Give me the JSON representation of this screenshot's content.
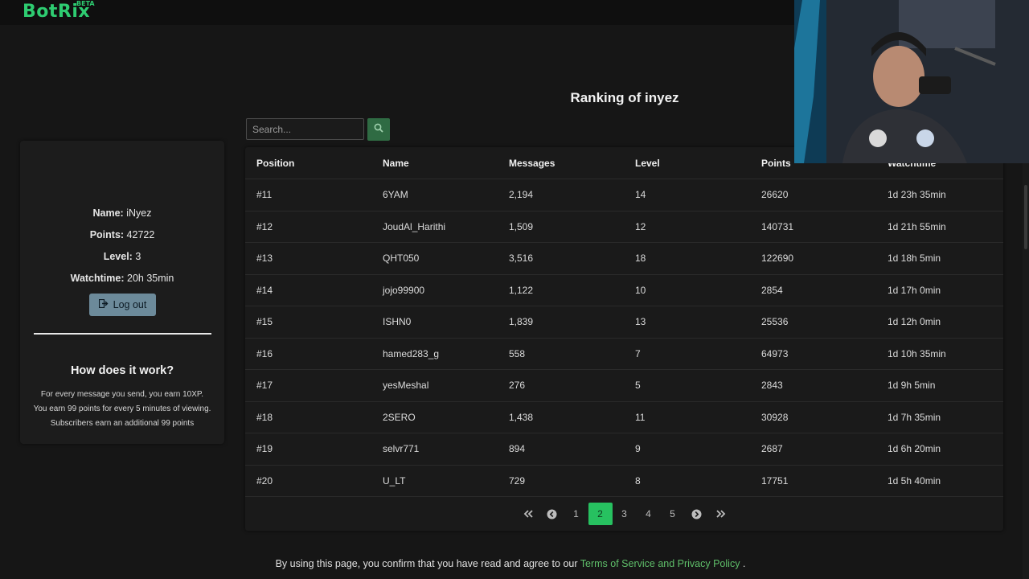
{
  "brand": {
    "name": "BotRix",
    "badge": "BETA"
  },
  "page_title": "Ranking of inyez",
  "sidebar": {
    "name_label": "Name:",
    "name_value": " iNyez",
    "points_label": "Points:",
    "points_value": " 42722",
    "level_label": "Level:",
    "level_value": " 3",
    "watchtime_label": "Watchtime:",
    "watchtime_value": " 20h 35min",
    "logout_label": "Log out",
    "how_title": "How does it work?",
    "how_lines": [
      "For every message you send, you earn 10XP.",
      "You earn 99 points for every 5 minutes of viewing.",
      "Subscribers earn an additional 99 points"
    ]
  },
  "search": {
    "placeholder": "Search..."
  },
  "table": {
    "headers": [
      "Position",
      "Name",
      "Messages",
      "Level",
      "Points",
      "Watchtime"
    ],
    "rows": [
      [
        "#11",
        "6YAM",
        "2,194",
        "14",
        "26620",
        "1d 23h 35min"
      ],
      [
        "#12",
        "JoudAl_Harithi",
        "1,509",
        "12",
        "140731",
        "1d 21h 55min"
      ],
      [
        "#13",
        "QHT050",
        "3,516",
        "18",
        "122690",
        "1d 18h 5min"
      ],
      [
        "#14",
        "jojo99900",
        "1,122",
        "10",
        "2854",
        "1d 17h 0min"
      ],
      [
        "#15",
        "ISHN0",
        "1,839",
        "13",
        "25536",
        "1d 12h 0min"
      ],
      [
        "#16",
        "hamed283_g",
        "558",
        "7",
        "64973",
        "1d 10h 35min"
      ],
      [
        "#17",
        "yesMeshal",
        "276",
        "5",
        "2843",
        "1d 9h 5min"
      ],
      [
        "#18",
        "2SERO",
        "1,438",
        "11",
        "30928",
        "1d 7h 35min"
      ],
      [
        "#19",
        "selvr771",
        "894",
        "9",
        "2687",
        "1d 6h 20min"
      ],
      [
        "#20",
        "U_LT",
        "729",
        "8",
        "17751",
        "1d 5h 40min"
      ]
    ]
  },
  "pagination": {
    "first": "«",
    "prev": "‹",
    "pages": [
      "1",
      "2",
      "3",
      "4",
      "5"
    ],
    "current": "2",
    "next": "›",
    "last": "»"
  },
  "footer": {
    "text_before": "By using this page, you confirm that you have read and agree to our ",
    "link": "Terms of Service and Privacy Policy",
    "text_after": " ."
  },
  "colors": {
    "accent": "#27c160",
    "brand": "#2ecc71",
    "link": "#5fbf6a"
  }
}
